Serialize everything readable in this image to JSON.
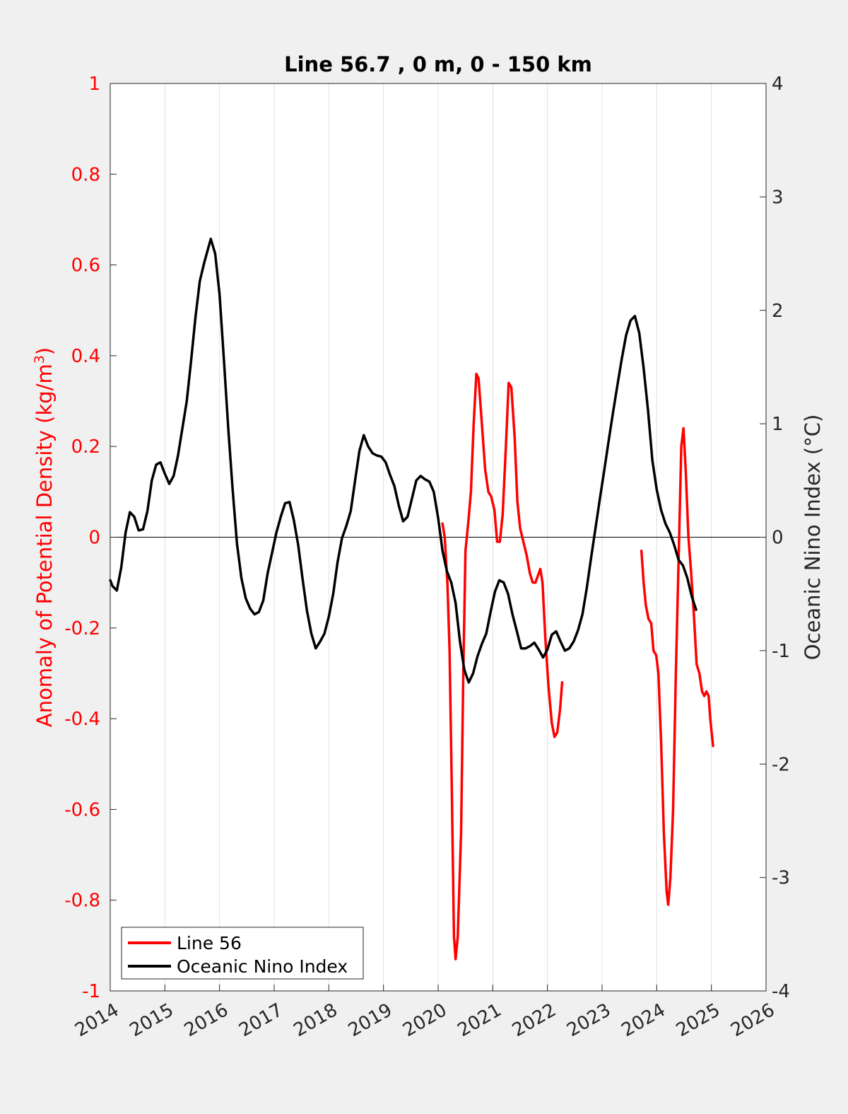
{
  "chart_data": {
    "type": "line",
    "title": "Line 56.7 , 0 m, 0 - 150 km",
    "xlabel": "",
    "ylabel_left": "Anomaly of Potential Density (kg/m",
    "ylabel_left_sup": "3",
    "ylabel_left_close": ")",
    "ylabel_right": "Oceanic Nino Index (°C)",
    "xlim": [
      2014,
      2026
    ],
    "ylim_left": [
      -1,
      1
    ],
    "ylim_right": [
      -4,
      4
    ],
    "x_ticks": [
      "2014",
      "2015",
      "2016",
      "2017",
      "2018",
      "2019",
      "2020",
      "2021",
      "2022",
      "2023",
      "2024",
      "2025",
      "2026"
    ],
    "y_left_ticks": [
      "1",
      "0.8",
      "0.6",
      "0.4",
      "0.2",
      "0",
      "-0.2",
      "-0.4",
      "-0.6",
      "-0.8",
      "-1"
    ],
    "y_right_ticks": [
      "4",
      "3",
      "2",
      "1",
      "0",
      "-1",
      "-2",
      "-3",
      "-4"
    ],
    "grid_x": true,
    "zero_line": true,
    "legend_position": "bottom-left",
    "colors": {
      "line56": "#ff0000",
      "oni": "#000000",
      "left_axis": "#ff0000",
      "right_axis": "#000000"
    },
    "series": [
      {
        "name": "Line 56",
        "axis": "left",
        "color": "#ff0000",
        "segments": [
          [
            [
              2020.08,
              0.03
            ],
            [
              2020.12,
              0.0
            ],
            [
              2020.17,
              -0.1
            ],
            [
              2020.21,
              -0.25
            ],
            [
              2020.25,
              -0.55
            ],
            [
              2020.29,
              -0.88
            ],
            [
              2020.32,
              -0.93
            ],
            [
              2020.36,
              -0.88
            ],
            [
              2020.42,
              -0.65
            ],
            [
              2020.46,
              -0.3
            ],
            [
              2020.5,
              -0.03
            ],
            [
              2020.55,
              0.03
            ],
            [
              2020.6,
              0.1
            ],
            [
              2020.65,
              0.25
            ],
            [
              2020.7,
              0.36
            ],
            [
              2020.74,
              0.35
            ],
            [
              2020.8,
              0.25
            ],
            [
              2020.86,
              0.15
            ],
            [
              2020.92,
              0.1
            ],
            [
              2020.97,
              0.09
            ],
            [
              2021.03,
              0.06
            ],
            [
              2021.08,
              -0.01
            ],
            [
              2021.13,
              -0.01
            ],
            [
              2021.18,
              0.05
            ],
            [
              2021.24,
              0.2
            ],
            [
              2021.29,
              0.34
            ],
            [
              2021.34,
              0.33
            ],
            [
              2021.4,
              0.22
            ],
            [
              2021.45,
              0.08
            ],
            [
              2021.5,
              0.02
            ],
            [
              2021.56,
              -0.01
            ],
            [
              2021.62,
              -0.04
            ],
            [
              2021.68,
              -0.08
            ],
            [
              2021.73,
              -0.1
            ],
            [
              2021.78,
              -0.1
            ],
            [
              2021.84,
              -0.08
            ],
            [
              2021.87,
              -0.07
            ],
            [
              2021.91,
              -0.1
            ],
            [
              2021.96,
              -0.22
            ],
            [
              2022.02,
              -0.33
            ],
            [
              2022.08,
              -0.41
            ],
            [
              2022.13,
              -0.44
            ],
            [
              2022.18,
              -0.43
            ],
            [
              2022.23,
              -0.38
            ],
            [
              2022.27,
              -0.32
            ]
          ],
          [
            [
              2023.72,
              -0.03
            ],
            [
              2023.76,
              -0.1
            ],
            [
              2023.8,
              -0.15
            ],
            [
              2023.85,
              -0.18
            ],
            [
              2023.9,
              -0.19
            ],
            [
              2023.94,
              -0.25
            ],
            [
              2023.99,
              -0.26
            ],
            [
              2024.03,
              -0.3
            ],
            [
              2024.08,
              -0.45
            ],
            [
              2024.13,
              -0.65
            ],
            [
              2024.18,
              -0.78
            ],
            [
              2024.21,
              -0.81
            ],
            [
              2024.25,
              -0.75
            ],
            [
              2024.3,
              -0.6
            ],
            [
              2024.35,
              -0.3
            ],
            [
              2024.4,
              -0.05
            ],
            [
              2024.45,
              0.2
            ],
            [
              2024.49,
              0.24
            ],
            [
              2024.53,
              0.15
            ],
            [
              2024.58,
              0.0
            ],
            [
              2024.63,
              -0.08
            ],
            [
              2024.68,
              -0.17
            ],
            [
              2024.73,
              -0.28
            ],
            [
              2024.78,
              -0.3
            ],
            [
              2024.83,
              -0.34
            ],
            [
              2024.87,
              -0.35
            ],
            [
              2024.91,
              -0.34
            ],
            [
              2024.95,
              -0.35
            ],
            [
              2024.98,
              -0.4
            ],
            [
              2025.03,
              -0.46
            ]
          ]
        ]
      },
      {
        "name": "Oceanic Nino Index",
        "axis": "right",
        "color": "#000000",
        "points": [
          [
            2014.0,
            -0.38
          ],
          [
            2014.04,
            -0.43
          ],
          [
            2014.12,
            -0.47
          ],
          [
            2014.2,
            -0.27
          ],
          [
            2014.28,
            0.04
          ],
          [
            2014.36,
            0.22
          ],
          [
            2014.44,
            0.18
          ],
          [
            2014.52,
            0.06
          ],
          [
            2014.6,
            0.07
          ],
          [
            2014.68,
            0.23
          ],
          [
            2014.76,
            0.5
          ],
          [
            2014.84,
            0.64
          ],
          [
            2014.92,
            0.66
          ],
          [
            2015.0,
            0.56
          ],
          [
            2015.08,
            0.47
          ],
          [
            2015.16,
            0.54
          ],
          [
            2015.24,
            0.72
          ],
          [
            2015.32,
            0.96
          ],
          [
            2015.4,
            1.2
          ],
          [
            2015.48,
            1.56
          ],
          [
            2015.56,
            1.94
          ],
          [
            2015.64,
            2.26
          ],
          [
            2015.72,
            2.42
          ],
          [
            2015.84,
            2.63
          ],
          [
            2015.92,
            2.5
          ],
          [
            2016.0,
            2.14
          ],
          [
            2016.08,
            1.56
          ],
          [
            2016.16,
            0.96
          ],
          [
            2016.24,
            0.42
          ],
          [
            2016.32,
            -0.06
          ],
          [
            2016.4,
            -0.36
          ],
          [
            2016.48,
            -0.54
          ],
          [
            2016.56,
            -0.63
          ],
          [
            2016.64,
            -0.68
          ],
          [
            2016.72,
            -0.66
          ],
          [
            2016.8,
            -0.56
          ],
          [
            2016.88,
            -0.32
          ],
          [
            2016.96,
            -0.14
          ],
          [
            2017.04,
            0.04
          ],
          [
            2017.12,
            0.18
          ],
          [
            2017.2,
            0.3
          ],
          [
            2017.28,
            0.31
          ],
          [
            2017.36,
            0.15
          ],
          [
            2017.44,
            -0.07
          ],
          [
            2017.52,
            -0.37
          ],
          [
            2017.6,
            -0.65
          ],
          [
            2017.68,
            -0.85
          ],
          [
            2017.76,
            -0.98
          ],
          [
            2017.84,
            -0.92
          ],
          [
            2017.92,
            -0.85
          ],
          [
            2018.0,
            -0.7
          ],
          [
            2018.08,
            -0.5
          ],
          [
            2018.16,
            -0.22
          ],
          [
            2018.24,
            -0.01
          ],
          [
            2018.32,
            0.1
          ],
          [
            2018.4,
            0.23
          ],
          [
            2018.48,
            0.5
          ],
          [
            2018.56,
            0.76
          ],
          [
            2018.64,
            0.9
          ],
          [
            2018.72,
            0.8
          ],
          [
            2018.8,
            0.74
          ],
          [
            2018.88,
            0.72
          ],
          [
            2018.96,
            0.71
          ],
          [
            2019.04,
            0.66
          ],
          [
            2019.12,
            0.55
          ],
          [
            2019.2,
            0.45
          ],
          [
            2019.28,
            0.28
          ],
          [
            2019.36,
            0.14
          ],
          [
            2019.44,
            0.18
          ],
          [
            2019.52,
            0.34
          ],
          [
            2019.6,
            0.5
          ],
          [
            2019.68,
            0.54
          ],
          [
            2019.76,
            0.51
          ],
          [
            2019.84,
            0.49
          ],
          [
            2019.92,
            0.4
          ],
          [
            2020.0,
            0.17
          ],
          [
            2020.08,
            -0.12
          ],
          [
            2020.16,
            -0.3
          ],
          [
            2020.24,
            -0.4
          ],
          [
            2020.32,
            -0.58
          ],
          [
            2020.4,
            -0.92
          ],
          [
            2020.48,
            -1.17
          ],
          [
            2020.56,
            -1.28
          ],
          [
            2020.64,
            -1.2
          ],
          [
            2020.72,
            -1.05
          ],
          [
            2020.8,
            -0.94
          ],
          [
            2020.88,
            -0.85
          ],
          [
            2020.96,
            -0.66
          ],
          [
            2021.04,
            -0.48
          ],
          [
            2021.12,
            -0.38
          ],
          [
            2021.2,
            -0.4
          ],
          [
            2021.28,
            -0.5
          ],
          [
            2021.36,
            -0.68
          ],
          [
            2021.44,
            -0.83
          ],
          [
            2021.52,
            -0.98
          ],
          [
            2021.6,
            -0.98
          ],
          [
            2021.68,
            -0.96
          ],
          [
            2021.76,
            -0.93
          ],
          [
            2021.84,
            -0.99
          ],
          [
            2021.92,
            -1.06
          ],
          [
            2022.0,
            -0.99
          ],
          [
            2022.08,
            -0.86
          ],
          [
            2022.16,
            -0.83
          ],
          [
            2022.24,
            -0.92
          ],
          [
            2022.32,
            -1.0
          ],
          [
            2022.4,
            -0.98
          ],
          [
            2022.48,
            -0.92
          ],
          [
            2022.56,
            -0.82
          ],
          [
            2022.64,
            -0.68
          ],
          [
            2022.72,
            -0.45
          ],
          [
            2022.8,
            -0.18
          ],
          [
            2022.88,
            0.08
          ],
          [
            2022.96,
            0.34
          ],
          [
            2023.04,
            0.59
          ],
          [
            2023.12,
            0.85
          ],
          [
            2023.2,
            1.1
          ],
          [
            2023.28,
            1.34
          ],
          [
            2023.36,
            1.57
          ],
          [
            2023.44,
            1.78
          ],
          [
            2023.52,
            1.91
          ],
          [
            2023.6,
            1.95
          ],
          [
            2023.68,
            1.8
          ],
          [
            2023.76,
            1.49
          ],
          [
            2023.84,
            1.12
          ],
          [
            2023.92,
            0.68
          ],
          [
            2024.0,
            0.42
          ],
          [
            2024.08,
            0.24
          ],
          [
            2024.16,
            0.12
          ],
          [
            2024.24,
            0.04
          ],
          [
            2024.32,
            -0.07
          ],
          [
            2024.4,
            -0.2
          ],
          [
            2024.48,
            -0.25
          ],
          [
            2024.56,
            -0.36
          ],
          [
            2024.64,
            -0.52
          ],
          [
            2024.72,
            -0.64
          ]
        ]
      }
    ]
  },
  "legend": {
    "items": [
      {
        "label": "Line 56",
        "color": "#ff0000"
      },
      {
        "label": "Oceanic Nino Index",
        "color": "#000000"
      }
    ]
  }
}
